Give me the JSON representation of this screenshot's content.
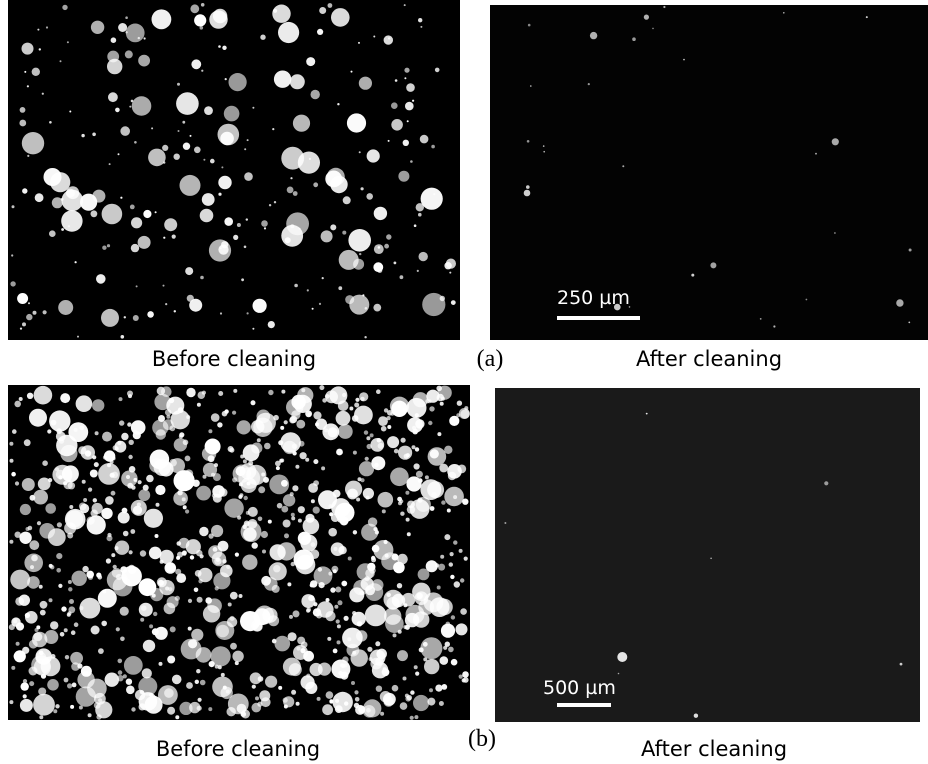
{
  "panels": [
    {
      "label": "(a)",
      "before": {
        "caption": "Before cleaning"
      },
      "after": {
        "caption": "After cleaning",
        "scale_bar": "250 µm"
      }
    },
    {
      "label": "(b)",
      "before": {
        "caption": "Before cleaning"
      },
      "after": {
        "caption": "After cleaning",
        "scale_bar": "500 µm"
      }
    }
  ]
}
